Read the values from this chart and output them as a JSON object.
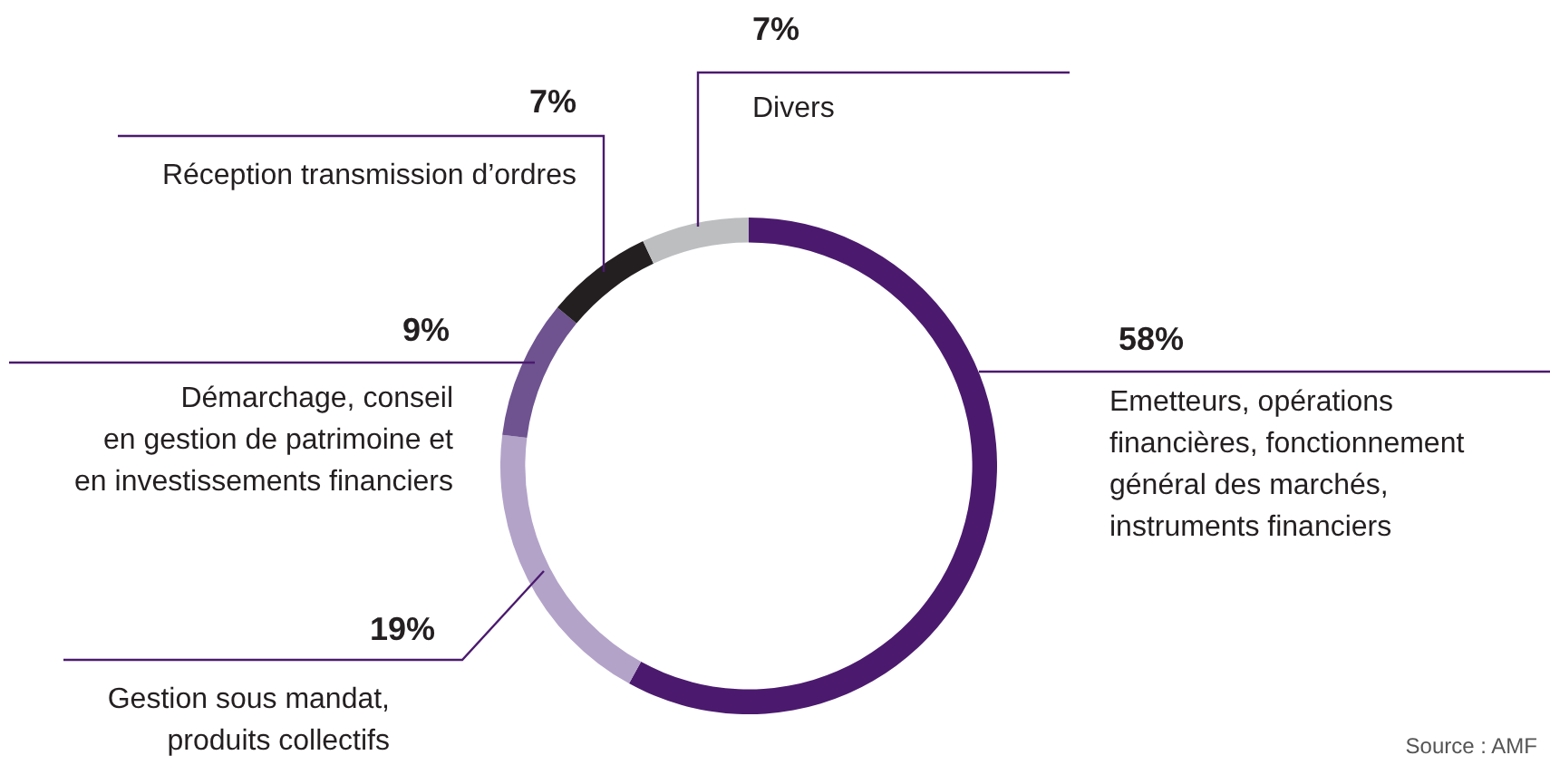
{
  "chart_data": {
    "type": "donut",
    "categories": [
      "Emetteurs, opérations\nfinancières, fonctionnement\ngénéral des marchés,\ninstruments financiers",
      "Gestion sous mandat,\nproduits collectifs",
      "Démarchage, conseil\nen gestion de patrimoine et\nen investissements financiers",
      "Réception transmission d’ordres",
      "Divers"
    ],
    "values": [
      58,
      19,
      9,
      7,
      7
    ],
    "value_labels": [
      "58%",
      "19%",
      "9%",
      "7%",
      "7%"
    ],
    "colors": [
      "#4b1a6e",
      "#b3a3c9",
      "#6e5390",
      "#231f20",
      "#bcbec0"
    ],
    "legend": false,
    "annotations": [
      "Source : AMF"
    ]
  }
}
